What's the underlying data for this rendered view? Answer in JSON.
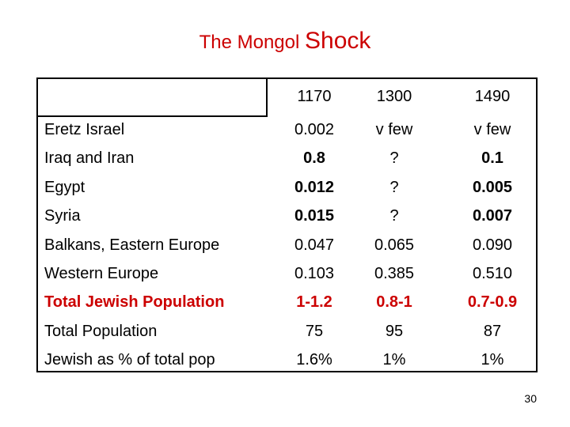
{
  "title": {
    "prefix": "The Mongol",
    "big": "Shock"
  },
  "table": {
    "years": [
      "1170",
      "1300",
      "1490"
    ],
    "rows": [
      {
        "label": "Eretz Israel",
        "values": [
          "0.002",
          "v few",
          "v few"
        ],
        "label_style": "",
        "value_styles": [
          "",
          "",
          ""
        ]
      },
      {
        "label": "Iraq and Iran",
        "values": [
          "0.8",
          "?",
          "0.1"
        ],
        "label_style": "",
        "value_styles": [
          "bold",
          "",
          "bold"
        ]
      },
      {
        "label": "Egypt",
        "values": [
          "0.012",
          "?",
          "0.005"
        ],
        "label_style": "",
        "value_styles": [
          "bold",
          "",
          "bold"
        ]
      },
      {
        "label": "Syria",
        "values": [
          "0.015",
          "?",
          "0.007"
        ],
        "label_style": "",
        "value_styles": [
          "bold",
          "",
          "bold"
        ]
      },
      {
        "label": "Balkans, Eastern Europe",
        "values": [
          "0.047",
          "0.065",
          "0.090"
        ],
        "label_style": "",
        "value_styles": [
          "",
          "",
          ""
        ]
      },
      {
        "label": "Western Europe",
        "values": [
          "0.103",
          "0.385",
          "0.510"
        ],
        "label_style": "",
        "value_styles": [
          "",
          "",
          ""
        ]
      },
      {
        "label": "Total Jewish Population",
        "values": [
          "1-1.2",
          "0.8-1",
          "0.7-0.9"
        ],
        "label_style": "bold red",
        "value_styles": [
          "bold red",
          "bold red",
          "bold red"
        ]
      },
      {
        "label": "Total Population",
        "values": [
          "75",
          "95",
          "87"
        ],
        "label_style": "",
        "value_styles": [
          "",
          "",
          ""
        ]
      },
      {
        "label": "Jewish as % of total pop",
        "values": [
          "1.6%",
          "1%",
          "1%"
        ],
        "label_style": "",
        "value_styles": [
          "",
          "",
          ""
        ]
      }
    ]
  },
  "page_number": "30"
}
